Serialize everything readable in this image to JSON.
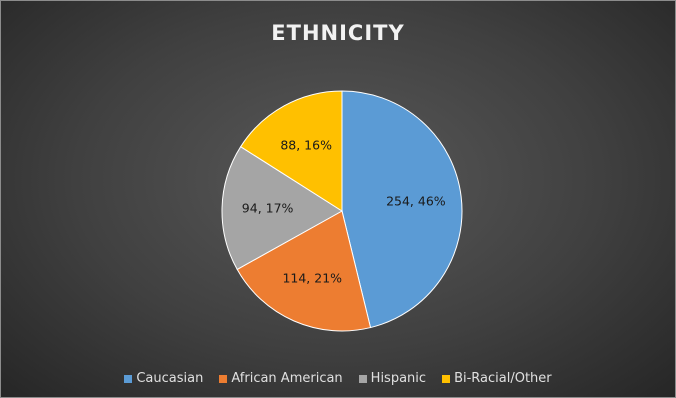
{
  "chart_data": {
    "type": "pie",
    "title": "ETHNICITY",
    "slices": [
      {
        "label": "Caucasian",
        "value": 254,
        "percent": "46%",
        "data_label": "254, 46%",
        "color": "#5b9bd5"
      },
      {
        "label": "African American",
        "value": 114,
        "percent": "21%",
        "data_label": "114, 21%",
        "color": "#ed7d31"
      },
      {
        "label": "Hispanic",
        "value": 94,
        "percent": "17%",
        "data_label": "94, 17%",
        "color": "#a5a5a5"
      },
      {
        "label": "Bi-Racial/Other",
        "value": 88,
        "percent": "16%",
        "data_label": "88, 16%",
        "color": "#ffc000"
      }
    ],
    "legend_position": "bottom",
    "start": "12 o'clock, clockwise"
  }
}
